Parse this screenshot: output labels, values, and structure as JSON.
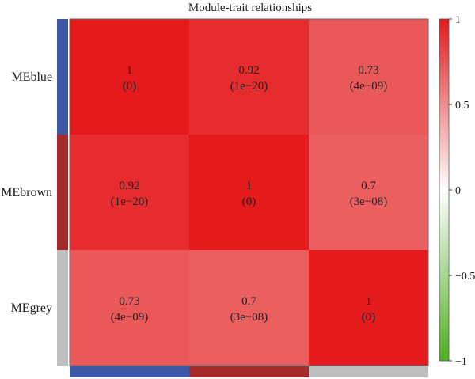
{
  "chart_data": {
    "type": "heatmap",
    "title": "Module-trait relationships",
    "rows": [
      "MEblue",
      "MEbrown",
      "MEgrey"
    ],
    "row_colors": [
      "#3b57a6",
      "#a52a2a",
      "#bebebe"
    ],
    "col_colors": [
      "#3b57a6",
      "#a52a2a",
      "#bebebe"
    ],
    "values": [
      [
        1,
        0.92,
        0.73
      ],
      [
        0.92,
        1,
        0.7
      ],
      [
        0.73,
        0.7,
        1
      ]
    ],
    "pvalues": [
      [
        "(0)",
        "(1e−20)",
        "(4e−09)"
      ],
      [
        "(1e−20)",
        "(0)",
        "(3e−08)"
      ],
      [
        "(4e−09)",
        "(3e−08)",
        "(0)"
      ]
    ],
    "value_labels": [
      [
        "1",
        "0.92",
        "0.73"
      ],
      [
        "0.92",
        "1",
        "0.7"
      ],
      [
        "0.73",
        "0.7",
        "1"
      ]
    ],
    "colorbar": {
      "range": [
        -1,
        1
      ],
      "ticks": [
        "1",
        "0.5",
        "0",
        "−0.5",
        "−1"
      ],
      "tick_values": [
        1,
        0.5,
        0,
        -0.5,
        -1
      ],
      "low_color": "#4daf1f",
      "mid_color": "#ffffff",
      "high_color": "#e41a1c"
    }
  }
}
